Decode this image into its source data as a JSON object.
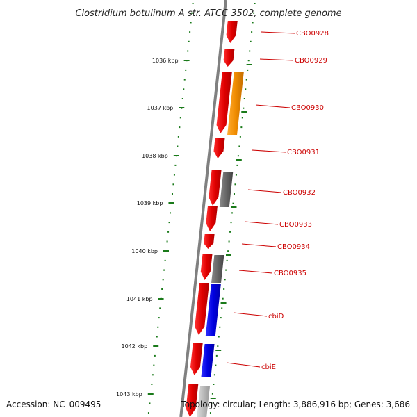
{
  "title": "Clostridium botulinum A str. ATCC 3502, complete genome",
  "accession": "Accession: NC_009495",
  "topology": "Topology: circular; Length: 3,886,916 bp; Genes: 3,686",
  "colors": {
    "label": "#cc0000",
    "leader": "#cc0000",
    "ruler": "#1a7a1a",
    "backbone": "#808080",
    "red": "#e00000",
    "orange": "#f08c00",
    "gray": "#666666",
    "blue": "#0000e0",
    "lightgray": "#bbbbbb"
  },
  "ruler": {
    "tick_labels": [
      "1036 kbp",
      "1037 kbp",
      "1038 kbp",
      "1039 kbp",
      "1040 kbp",
      "1041 kbp",
      "1042 kbp",
      "1043 kbp"
    ]
  },
  "genes": [
    {
      "label": "CBO0928",
      "strand": "forward",
      "color": "red"
    },
    {
      "label": "CBO0929",
      "strand": "forward",
      "color": "red"
    },
    {
      "label": "CBO0930",
      "strand": "forward",
      "color": "red"
    },
    {
      "label": "CBO0930",
      "strand": "reverse",
      "color": "orange"
    },
    {
      "label": "CBO0931",
      "strand": "forward",
      "color": "red"
    },
    {
      "label": "CBO0932",
      "strand": "forward",
      "color": "red"
    },
    {
      "label": "CBO0932",
      "strand": "reverse",
      "color": "gray"
    },
    {
      "label": "CBO0933",
      "strand": "forward",
      "color": "red"
    },
    {
      "label": "CBO0934",
      "strand": "forward",
      "color": "red"
    },
    {
      "label": "CBO0935",
      "strand": "forward",
      "color": "red"
    },
    {
      "label": "CBO0935",
      "strand": "reverse",
      "color": "gray"
    },
    {
      "label": "cbiD",
      "strand": "forward",
      "color": "red"
    },
    {
      "label": "cbiD",
      "strand": "reverse",
      "color": "blue"
    },
    {
      "label": "cbiE",
      "strand": "forward",
      "color": "red"
    },
    {
      "label": "cbiE",
      "strand": "reverse",
      "color": "blue"
    },
    {
      "label": "",
      "strand": "forward",
      "color": "red"
    },
    {
      "label": "",
      "strand": "reverse",
      "color": "lightgray"
    }
  ],
  "gene_labels": [
    "CBO0928",
    "CBO0929",
    "CBO0930",
    "CBO0931",
    "CBO0932",
    "CBO0933",
    "CBO0934",
    "CBO0935",
    "cbiD",
    "cbiE"
  ]
}
